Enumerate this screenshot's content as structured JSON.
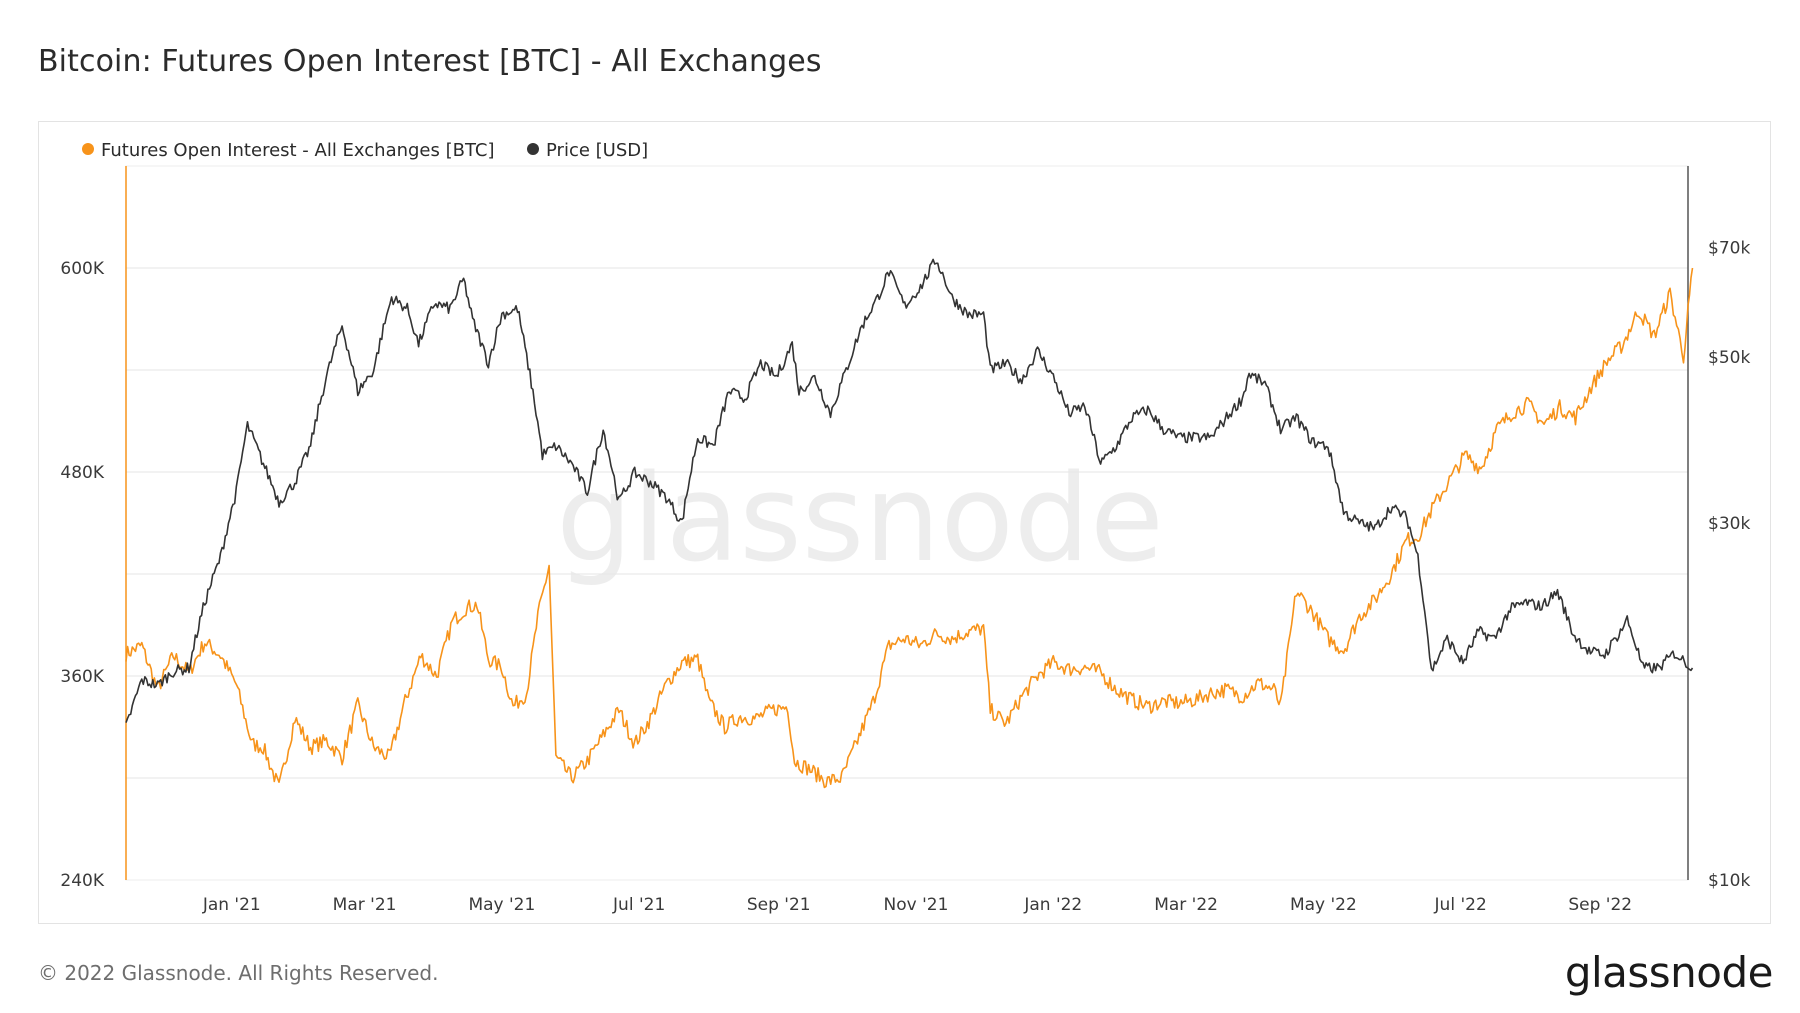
{
  "page": {
    "title": "Bitcoin: Futures Open Interest [BTC] - All Exchanges",
    "footer": "© 2022 Glassnode. All Rights Reserved.",
    "brand": "glassnode",
    "watermark": "glassnode"
  },
  "colors": {
    "open_interest": "#f7931a",
    "price": "#333333",
    "grid": "#e6e6e6",
    "axis_line_left": "#f7931a",
    "axis_line_right": "#555555"
  },
  "chart_data": {
    "type": "line",
    "title": "Bitcoin: Futures Open Interest [BTC] - All Exchanges",
    "x_range": [
      "2020-11-15",
      "2022-10-10"
    ],
    "x_ticks": [
      {
        "date": "2021-01-01",
        "label": "Jan '21"
      },
      {
        "date": "2021-03-01",
        "label": "Mar '21"
      },
      {
        "date": "2021-05-01",
        "label": "May '21"
      },
      {
        "date": "2021-07-01",
        "label": "Jul '21"
      },
      {
        "date": "2021-09-01",
        "label": "Sep '21"
      },
      {
        "date": "2021-11-01",
        "label": "Nov '21"
      },
      {
        "date": "2022-01-01",
        "label": "Jan '22"
      },
      {
        "date": "2022-03-01",
        "label": "Mar '22"
      },
      {
        "date": "2022-05-01",
        "label": "May '22"
      },
      {
        "date": "2022-07-01",
        "label": "Jul '22"
      },
      {
        "date": "2022-09-01",
        "label": "Sep '22"
      }
    ],
    "y_left": {
      "label": "Futures Open Interest [BTC]",
      "range": [
        240000,
        660000
      ],
      "ticks": [
        {
          "value": 240000,
          "label": "240K"
        },
        {
          "value": 360000,
          "label": "360K"
        },
        {
          "value": 480000,
          "label": "480K"
        },
        {
          "value": 600000,
          "label": "600K"
        }
      ],
      "grid_values": [
        300000,
        360000,
        420000,
        480000,
        540000,
        600000
      ]
    },
    "y_right": {
      "label": "Price [USD]",
      "scale": "log",
      "range": [
        10000,
        90000
      ],
      "ticks": [
        {
          "value": 10000,
          "label": "$10k"
        },
        {
          "value": 30000,
          "label": "$30k"
        },
        {
          "value": 50000,
          "label": "$50k"
        },
        {
          "value": 70000,
          "label": "$70k"
        }
      ]
    },
    "legend": [
      {
        "label": "Futures Open Interest - All Exchanges [BTC]",
        "color": "#f7931a"
      },
      {
        "label": "Price [USD]",
        "color": "#333333"
      }
    ],
    "series": [
      {
        "name": "Futures Open Interest - All Exchanges [BTC]",
        "axis": "left",
        "color": "#f7931a",
        "points": [
          [
            "2020-11-15",
            373000
          ],
          [
            "2020-11-22",
            378000
          ],
          [
            "2020-11-29",
            352000
          ],
          [
            "2020-12-06",
            372000
          ],
          [
            "2020-12-13",
            362000
          ],
          [
            "2020-12-20",
            380000
          ],
          [
            "2020-12-27",
            372000
          ],
          [
            "2021-01-03",
            355000
          ],
          [
            "2021-01-10",
            320000
          ],
          [
            "2021-01-15",
            318000
          ],
          [
            "2021-01-22",
            294000
          ],
          [
            "2021-01-29",
            335000
          ],
          [
            "2021-02-05",
            318000
          ],
          [
            "2021-02-12",
            322000
          ],
          [
            "2021-02-19",
            312000
          ],
          [
            "2021-02-26",
            343000
          ],
          [
            "2021-03-05",
            318000
          ],
          [
            "2021-03-12",
            312000
          ],
          [
            "2021-03-19",
            345000
          ],
          [
            "2021-03-26",
            372000
          ],
          [
            "2021-04-02",
            360000
          ],
          [
            "2021-04-09",
            392000
          ],
          [
            "2021-04-15",
            400000
          ],
          [
            "2021-04-20",
            402000
          ],
          [
            "2021-04-25",
            370000
          ],
          [
            "2021-05-01",
            365000
          ],
          [
            "2021-05-06",
            342000
          ],
          [
            "2021-05-12",
            350000
          ],
          [
            "2021-05-17",
            395000
          ],
          [
            "2021-05-22",
            425000
          ],
          [
            "2021-05-25",
            312000
          ],
          [
            "2021-06-01",
            300000
          ],
          [
            "2021-06-08",
            310000
          ],
          [
            "2021-06-15",
            325000
          ],
          [
            "2021-06-22",
            340000
          ],
          [
            "2021-06-29",
            320000
          ],
          [
            "2021-07-06",
            335000
          ],
          [
            "2021-07-13",
            355000
          ],
          [
            "2021-07-20",
            368000
          ],
          [
            "2021-07-27",
            370000
          ],
          [
            "2021-08-01",
            345000
          ],
          [
            "2021-08-08",
            330000
          ],
          [
            "2021-08-15",
            336000
          ],
          [
            "2021-08-22",
            335000
          ],
          [
            "2021-08-29",
            340000
          ],
          [
            "2021-09-05",
            342000
          ],
          [
            "2021-09-08",
            310000
          ],
          [
            "2021-09-15",
            305000
          ],
          [
            "2021-09-22",
            298000
          ],
          [
            "2021-09-29",
            300000
          ],
          [
            "2021-10-06",
            322000
          ],
          [
            "2021-10-13",
            345000
          ],
          [
            "2021-10-20",
            378000
          ],
          [
            "2021-10-27",
            382000
          ],
          [
            "2021-11-03",
            378000
          ],
          [
            "2021-11-10",
            385000
          ],
          [
            "2021-11-17",
            382000
          ],
          [
            "2021-11-24",
            386000
          ],
          [
            "2021-12-01",
            388000
          ],
          [
            "2021-12-04",
            340000
          ],
          [
            "2021-12-11",
            332000
          ],
          [
            "2021-12-18",
            348000
          ],
          [
            "2021-12-25",
            360000
          ],
          [
            "2022-01-01",
            368000
          ],
          [
            "2022-01-08",
            364000
          ],
          [
            "2022-01-15",
            365000
          ],
          [
            "2022-01-22",
            362000
          ],
          [
            "2022-01-29",
            352000
          ],
          [
            "2022-02-05",
            346000
          ],
          [
            "2022-02-12",
            342000
          ],
          [
            "2022-02-19",
            345000
          ],
          [
            "2022-02-26",
            344000
          ],
          [
            "2022-03-05",
            346000
          ],
          [
            "2022-03-12",
            350000
          ],
          [
            "2022-03-19",
            352000
          ],
          [
            "2022-03-26",
            348000
          ],
          [
            "2022-04-02",
            356000
          ],
          [
            "2022-04-09",
            352000
          ],
          [
            "2022-04-12",
            342000
          ],
          [
            "2022-04-19",
            410000
          ],
          [
            "2022-04-26",
            398000
          ],
          [
            "2022-05-03",
            382000
          ],
          [
            "2022-05-10",
            375000
          ],
          [
            "2022-05-17",
            395000
          ],
          [
            "2022-05-24",
            405000
          ],
          [
            "2022-05-31",
            420000
          ],
          [
            "2022-06-07",
            440000
          ],
          [
            "2022-06-12",
            442000
          ],
          [
            "2022-06-19",
            460000
          ],
          [
            "2022-06-26",
            475000
          ],
          [
            "2022-07-03",
            490000
          ],
          [
            "2022-07-10",
            482000
          ],
          [
            "2022-07-17",
            505000
          ],
          [
            "2022-07-24",
            515000
          ],
          [
            "2022-07-31",
            520000
          ],
          [
            "2022-08-07",
            508000
          ],
          [
            "2022-08-14",
            518000
          ],
          [
            "2022-08-21",
            512000
          ],
          [
            "2022-08-28",
            530000
          ],
          [
            "2022-09-04",
            545000
          ],
          [
            "2022-09-11",
            555000
          ],
          [
            "2022-09-18",
            575000
          ],
          [
            "2022-09-25",
            560000
          ],
          [
            "2022-10-02",
            585000
          ],
          [
            "2022-10-08",
            548000
          ],
          [
            "2022-10-12",
            600000
          ]
        ]
      },
      {
        "name": "Price [USD]",
        "axis": "right",
        "color": "#333333",
        "points": [
          [
            "2020-11-15",
            16000
          ],
          [
            "2020-11-22",
            18500
          ],
          [
            "2020-11-29",
            18200
          ],
          [
            "2020-12-06",
            19000
          ],
          [
            "2020-12-13",
            19200
          ],
          [
            "2020-12-20",
            23500
          ],
          [
            "2020-12-27",
            27000
          ],
          [
            "2021-01-03",
            33000
          ],
          [
            "2021-01-08",
            40500
          ],
          [
            "2021-01-15",
            36000
          ],
          [
            "2021-01-22",
            32000
          ],
          [
            "2021-01-29",
            34000
          ],
          [
            "2021-02-05",
            38000
          ],
          [
            "2021-02-12",
            47000
          ],
          [
            "2021-02-19",
            55000
          ],
          [
            "2021-02-26",
            45000
          ],
          [
            "2021-03-05",
            48000
          ],
          [
            "2021-03-13",
            60000
          ],
          [
            "2021-03-20",
            58000
          ],
          [
            "2021-03-25",
            52000
          ],
          [
            "2021-04-01",
            59000
          ],
          [
            "2021-04-08",
            58000
          ],
          [
            "2021-04-14",
            63500
          ],
          [
            "2021-04-18",
            56000
          ],
          [
            "2021-04-25",
            49000
          ],
          [
            "2021-05-01",
            57000
          ],
          [
            "2021-05-08",
            58000
          ],
          [
            "2021-05-12",
            50000
          ],
          [
            "2021-05-19",
            37000
          ],
          [
            "2021-05-25",
            38000
          ],
          [
            "2021-06-01",
            36000
          ],
          [
            "2021-06-08",
            33000
          ],
          [
            "2021-06-15",
            40000
          ],
          [
            "2021-06-22",
            32000
          ],
          [
            "2021-06-29",
            35000
          ],
          [
            "2021-07-06",
            34000
          ],
          [
            "2021-07-13",
            32500
          ],
          [
            "2021-07-20",
            30000
          ],
          [
            "2021-07-27",
            39000
          ],
          [
            "2021-08-03",
            38000
          ],
          [
            "2021-08-10",
            45000
          ],
          [
            "2021-08-17",
            44000
          ],
          [
            "2021-08-24",
            49000
          ],
          [
            "2021-08-31",
            47000
          ],
          [
            "2021-09-07",
            52000
          ],
          [
            "2021-09-10",
            45000
          ],
          [
            "2021-09-17",
            47000
          ],
          [
            "2021-09-24",
            42000
          ],
          [
            "2021-10-01",
            48000
          ],
          [
            "2021-10-08",
            55000
          ],
          [
            "2021-10-15",
            60000
          ],
          [
            "2021-10-20",
            65000
          ],
          [
            "2021-10-27",
            58500
          ],
          [
            "2021-11-03",
            62000
          ],
          [
            "2021-11-10",
            67500
          ],
          [
            "2021-11-17",
            60000
          ],
          [
            "2021-11-24",
            57000
          ],
          [
            "2021-12-01",
            57000
          ],
          [
            "2021-12-04",
            48000
          ],
          [
            "2021-12-11",
            49000
          ],
          [
            "2021-12-18",
            46500
          ],
          [
            "2021-12-25",
            51000
          ],
          [
            "2022-01-01",
            47000
          ],
          [
            "2022-01-08",
            42000
          ],
          [
            "2022-01-15",
            43000
          ],
          [
            "2022-01-22",
            36000
          ],
          [
            "2022-01-29",
            38000
          ],
          [
            "2022-02-05",
            41500
          ],
          [
            "2022-02-12",
            42500
          ],
          [
            "2022-02-19",
            40000
          ],
          [
            "2022-02-26",
            39000
          ],
          [
            "2022-03-05",
            39000
          ],
          [
            "2022-03-12",
            39000
          ],
          [
            "2022-03-19",
            41500
          ],
          [
            "2022-03-26",
            44000
          ],
          [
            "2022-03-29",
            47500
          ],
          [
            "2022-04-05",
            46000
          ],
          [
            "2022-04-12",
            40000
          ],
          [
            "2022-04-19",
            41500
          ],
          [
            "2022-04-26",
            38500
          ],
          [
            "2022-05-03",
            38000
          ],
          [
            "2022-05-10",
            31000
          ],
          [
            "2022-05-17",
            30000
          ],
          [
            "2022-05-24",
            29500
          ],
          [
            "2022-05-31",
            31500
          ],
          [
            "2022-06-07",
            30500
          ],
          [
            "2022-06-12",
            27000
          ],
          [
            "2022-06-18",
            19000
          ],
          [
            "2022-06-25",
            21000
          ],
          [
            "2022-07-02",
            19500
          ],
          [
            "2022-07-09",
            21500
          ],
          [
            "2022-07-16",
            21000
          ],
          [
            "2022-07-23",
            23000
          ],
          [
            "2022-07-30",
            23500
          ],
          [
            "2022-08-06",
            23200
          ],
          [
            "2022-08-13",
            24300
          ],
          [
            "2022-08-20",
            21300
          ],
          [
            "2022-08-27",
            20200
          ],
          [
            "2022-09-03",
            20000
          ],
          [
            "2022-09-10",
            21500
          ],
          [
            "2022-09-13",
            22300
          ],
          [
            "2022-09-20",
            19200
          ],
          [
            "2022-09-27",
            19200
          ],
          [
            "2022-10-04",
            20100
          ],
          [
            "2022-10-12",
            19200
          ]
        ]
      }
    ]
  }
}
